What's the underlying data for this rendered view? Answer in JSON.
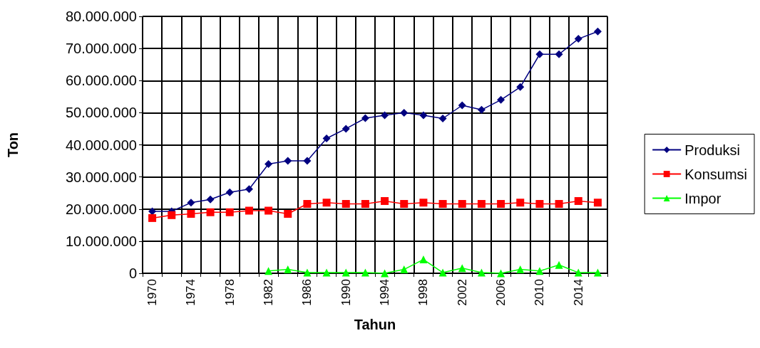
{
  "chart_data": {
    "type": "line",
    "xlabel": "Tahun",
    "ylabel": "Ton",
    "categories": [
      "1970",
      null,
      "1974",
      null,
      "1978",
      null,
      "1982",
      null,
      "1986",
      null,
      "1990",
      null,
      "1994",
      null,
      "1998",
      null,
      "2002",
      null,
      "2006",
      null,
      "2010",
      null,
      "2014",
      null
    ],
    "series": [
      {
        "name": "Produksi",
        "color": "#000080",
        "marker": "diamond",
        "values": [
          19300000,
          19300000,
          22000000,
          23000000,
          25200000,
          26200000,
          34000000,
          35000000,
          35000000,
          42000000,
          45000000,
          48300000,
          49200000,
          50000000,
          49200000,
          48200000,
          52300000,
          50900000,
          54000000,
          58000000,
          68200000,
          68200000,
          73000000,
          75300000
        ]
      },
      {
        "name": "Konsumsi",
        "color": "#ff0000",
        "marker": "square",
        "values": [
          17200000,
          18100000,
          18500000,
          19000000,
          19000000,
          19500000,
          19500000,
          18500000,
          21600000,
          22000000,
          21600000,
          21600000,
          22500000,
          21600000,
          22000000,
          21600000,
          21600000,
          21600000,
          21600000,
          22000000,
          21600000,
          21600000,
          22500000,
          22000000
        ]
      },
      {
        "name": "Impor",
        "color": "#00ff00",
        "marker": "triangle",
        "values": [
          null,
          null,
          null,
          null,
          null,
          null,
          700000,
          1200000,
          200000,
          200000,
          200000,
          200000,
          0,
          1200000,
          4300000,
          200000,
          1600000,
          200000,
          0,
          1200000,
          700000,
          2600000,
          200000,
          200000
        ]
      }
    ],
    "ylim": [
      0,
      80000000
    ],
    "yticks": [
      {
        "value": 0,
        "label": "0"
      },
      {
        "value": 10000000,
        "label": "10.000.000"
      },
      {
        "value": 20000000,
        "label": "20.000.000"
      },
      {
        "value": 30000000,
        "label": "30.000.000"
      },
      {
        "value": 40000000,
        "label": "40.000.000"
      },
      {
        "value": 50000000,
        "label": "50.000.000"
      },
      {
        "value": 60000000,
        "label": "60.000.000"
      },
      {
        "value": 70000000,
        "label": "70.000.000"
      },
      {
        "value": 80000000,
        "label": "80.000.000"
      }
    ],
    "grid": true,
    "legend": "right",
    "line_style": "solid"
  }
}
